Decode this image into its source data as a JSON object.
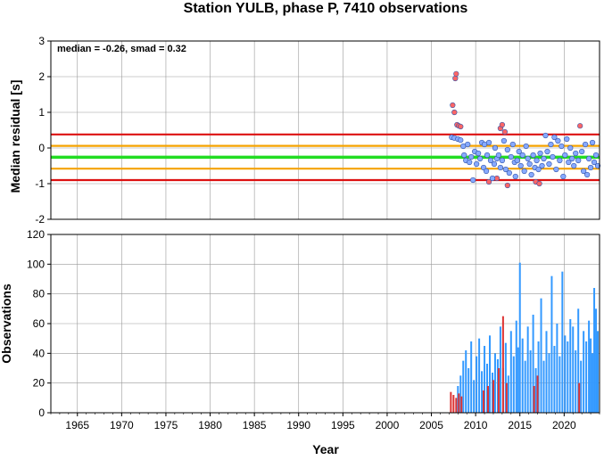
{
  "chart_data": [
    {
      "type": "scatter",
      "title": "Station YULB, phase P, 7410 observations",
      "ylabel": "Median residual [s]",
      "annotation": "median = -0.26, smad = 0.32",
      "xlim": [
        1962,
        2024
      ],
      "ylim": [
        -2,
        3
      ],
      "yticks": [
        -2,
        -1,
        0,
        1,
        2,
        3
      ],
      "grid": true,
      "reference_lines": [
        {
          "value": 0.38,
          "color": "#dd1111"
        },
        {
          "value": 0.06,
          "color": "#f5a300"
        },
        {
          "value": -0.26,
          "color": "#22dd22"
        },
        {
          "value": -0.58,
          "color": "#f5a300"
        },
        {
          "value": -0.9,
          "color": "#dd1111"
        }
      ],
      "series": [
        {
          "color": "#ff6666",
          "points": [
            [
              2007.4,
              1.2
            ],
            [
              2007.6,
              1.0
            ],
            [
              2007.7,
              1.95
            ],
            [
              2007.8,
              2.08
            ],
            [
              2007.9,
              0.65
            ],
            [
              2008.1,
              0.62
            ],
            [
              2008.3,
              0.6
            ],
            [
              2011.5,
              -0.95
            ],
            [
              2012.4,
              -0.85
            ],
            [
              2012.8,
              0.55
            ],
            [
              2013.0,
              0.65
            ],
            [
              2013.3,
              0.45
            ],
            [
              2013.6,
              -1.05
            ],
            [
              2016.8,
              -0.95
            ],
            [
              2017.2,
              -1.0
            ],
            [
              2021.8,
              0.62
            ]
          ]
        },
        {
          "color": "#88aaff",
          "points": [
            [
              2007.3,
              0.3
            ],
            [
              2007.6,
              0.28
            ],
            [
              2008.0,
              0.25
            ],
            [
              2008.3,
              0.22
            ],
            [
              2008.6,
              0.05
            ],
            [
              2008.7,
              -0.2
            ],
            [
              2008.9,
              -0.35
            ],
            [
              2009.1,
              0.1
            ],
            [
              2009.3,
              -0.4
            ],
            [
              2009.5,
              -0.25
            ],
            [
              2009.7,
              -0.9
            ],
            [
              2009.9,
              -0.1
            ],
            [
              2010.1,
              -0.45
            ],
            [
              2010.3,
              -0.15
            ],
            [
              2010.5,
              -0.3
            ],
            [
              2010.7,
              0.15
            ],
            [
              2010.9,
              -0.55
            ],
            [
              2011.0,
              0.1
            ],
            [
              2011.2,
              -0.65
            ],
            [
              2011.3,
              -0.2
            ],
            [
              2011.5,
              0.15
            ],
            [
              2011.7,
              -0.35
            ],
            [
              2011.9,
              -0.85
            ],
            [
              2012.1,
              -0.45
            ],
            [
              2012.2,
              0.0
            ],
            [
              2012.4,
              -0.3
            ],
            [
              2012.6,
              -0.2
            ],
            [
              2012.8,
              -0.55
            ],
            [
              2013.0,
              -0.35
            ],
            [
              2013.2,
              0.2
            ],
            [
              2013.4,
              -0.6
            ],
            [
              2013.6,
              -0.05
            ],
            [
              2013.8,
              -0.7
            ],
            [
              2014.0,
              -0.25
            ],
            [
              2014.2,
              0.1
            ],
            [
              2014.4,
              -0.4
            ],
            [
              2014.5,
              -0.8
            ],
            [
              2014.7,
              -0.35
            ],
            [
              2014.9,
              -0.1
            ],
            [
              2015.1,
              -0.5
            ],
            [
              2015.3,
              -0.2
            ],
            [
              2015.5,
              -0.65
            ],
            [
              2015.7,
              0.05
            ],
            [
              2015.9,
              -0.3
            ],
            [
              2016.1,
              -0.45
            ],
            [
              2016.3,
              -0.75
            ],
            [
              2016.5,
              -0.2
            ],
            [
              2016.7,
              -0.55
            ],
            [
              2016.9,
              -0.35
            ],
            [
              2017.1,
              -0.6
            ],
            [
              2017.3,
              -0.15
            ],
            [
              2017.5,
              -0.5
            ],
            [
              2017.7,
              -0.3
            ],
            [
              2017.9,
              0.35
            ],
            [
              2018.1,
              -0.1
            ],
            [
              2018.3,
              -0.45
            ],
            [
              2018.5,
              0.1
            ],
            [
              2018.7,
              -0.25
            ],
            [
              2018.9,
              0.3
            ],
            [
              2019.1,
              -0.6
            ],
            [
              2019.3,
              0.2
            ],
            [
              2019.5,
              -0.35
            ],
            [
              2019.7,
              0.05
            ],
            [
              2019.9,
              -0.8
            ],
            [
              2020.1,
              -0.2
            ],
            [
              2020.3,
              0.25
            ],
            [
              2020.5,
              -0.4
            ],
            [
              2020.7,
              0.0
            ],
            [
              2020.9,
              -0.3
            ],
            [
              2021.1,
              -0.5
            ],
            [
              2021.3,
              -0.15
            ],
            [
              2021.6,
              -0.35
            ],
            [
              2022.0,
              -0.1
            ],
            [
              2022.2,
              -0.65
            ],
            [
              2022.4,
              0.1
            ],
            [
              2022.6,
              -0.75
            ],
            [
              2022.8,
              -0.3
            ],
            [
              2023.0,
              -0.55
            ],
            [
              2023.2,
              0.15
            ],
            [
              2023.4,
              -0.4
            ],
            [
              2023.6,
              -0.2
            ],
            [
              2023.8,
              -0.5
            ]
          ]
        }
      ]
    },
    {
      "type": "bar",
      "ylabel": "Observations",
      "xlabel": "Year",
      "xlim": [
        1962,
        2024
      ],
      "ylim": [
        0,
        120
      ],
      "yticks": [
        0,
        20,
        40,
        60,
        80,
        100,
        120
      ],
      "xticks": [
        1965,
        1970,
        1975,
        1980,
        1985,
        1990,
        1995,
        2000,
        2005,
        2010,
        2015,
        2020
      ],
      "grid": true,
      "series": [
        {
          "color": "#3399ff",
          "x": [
            2008.0,
            2008.3,
            2008.6,
            2008.9,
            2009.2,
            2009.5,
            2009.8,
            2010.1,
            2010.4,
            2010.7,
            2011.0,
            2011.3,
            2011.6,
            2011.9,
            2012.2,
            2012.5,
            2012.8,
            2013.1,
            2013.4,
            2013.7,
            2014.0,
            2014.3,
            2014.6,
            2014.8,
            2015.0,
            2015.3,
            2015.6,
            2015.9,
            2016.2,
            2016.5,
            2016.8,
            2017.1,
            2017.4,
            2017.7,
            2018.0,
            2018.3,
            2018.6,
            2018.9,
            2019.2,
            2019.5,
            2019.8,
            2020.1,
            2020.4,
            2020.7,
            2021.0,
            2021.3,
            2021.6,
            2021.9,
            2022.2,
            2022.5,
            2022.8,
            2023.0,
            2023.2,
            2023.4,
            2023.6,
            2023.8
          ],
          "values": [
            18,
            25,
            35,
            42,
            30,
            48,
            22,
            38,
            50,
            28,
            45,
            33,
            52,
            27,
            40,
            36,
            58,
            30,
            47,
            25,
            55,
            38,
            62,
            44,
            101,
            50,
            35,
            58,
            42,
            66,
            30,
            48,
            77,
            35,
            55,
            40,
            92,
            45,
            60,
            38,
            95,
            52,
            48,
            63,
            58,
            42,
            70,
            35,
            55,
            48,
            62,
            50,
            40,
            84,
            70,
            55
          ]
        },
        {
          "color": "#dd3333",
          "x": [
            2007.2,
            2007.5,
            2007.8,
            2008.1,
            2008.4,
            2010.9,
            2011.4,
            2012.0,
            2012.6,
            2013.1,
            2013.5,
            2016.6,
            2017.0,
            2021.7
          ],
          "values": [
            14,
            12,
            10,
            13,
            11,
            15,
            18,
            22,
            30,
            65,
            20,
            18,
            25,
            20
          ]
        }
      ]
    }
  ]
}
